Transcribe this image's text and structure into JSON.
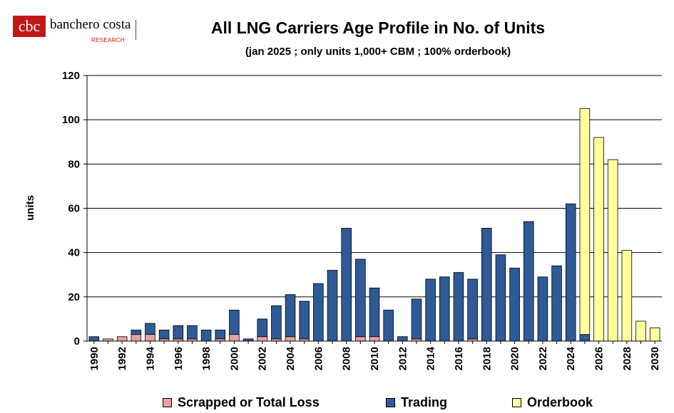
{
  "logo": {
    "name": "banchero costa",
    "sub": "RESEARCH"
  },
  "chart_data": {
    "type": "bar",
    "stacked": true,
    "title": "All LNG Carriers Age Profile in No. of Units",
    "subtitle": "(jan 2025 ; only units 1,000+ CBM ; 100% orderbook)",
    "xlabel": "",
    "ylabel": "units",
    "ylim": [
      0,
      120
    ],
    "yticks": [
      0,
      20,
      40,
      60,
      80,
      100,
      120
    ],
    "grid": true,
    "legend_position": "bottom",
    "categories": [
      "1990",
      "1991",
      "1992",
      "1993",
      "1994",
      "1995",
      "1996",
      "1997",
      "1998",
      "1999",
      "2000",
      "2001",
      "2002",
      "2003",
      "2004",
      "2005",
      "2006",
      "2007",
      "2008",
      "2009",
      "2010",
      "2011",
      "2012",
      "2013",
      "2014",
      "2015",
      "2016",
      "2017",
      "2018",
      "2019",
      "2020",
      "2021",
      "2022",
      "2023",
      "2024",
      "2025",
      "2026",
      "2027",
      "2028",
      "2029",
      "2030"
    ],
    "xtick_labels": [
      "1990",
      "1992",
      "1994",
      "1996",
      "1998",
      "2000",
      "2002",
      "2004",
      "2006",
      "2008",
      "2010",
      "2012",
      "2014",
      "2016",
      "2018",
      "2020",
      "2022",
      "2024",
      "2026",
      "2028",
      "2030"
    ],
    "series": [
      {
        "name": "Scrapped or Total Loss",
        "color": "#e8a0a0",
        "values": [
          0,
          1,
          2,
          3,
          3,
          1,
          1,
          1,
          0,
          1,
          3,
          0,
          2,
          1,
          2,
          1,
          0,
          0,
          0,
          2,
          2,
          0,
          0,
          1,
          0,
          0,
          0,
          1,
          0,
          0,
          0,
          0,
          0,
          0,
          0,
          0,
          0,
          0,
          0,
          0,
          0
        ]
      },
      {
        "name": "Trading",
        "color": "#2f5a96",
        "values": [
          2,
          0,
          0,
          2,
          5,
          4,
          6,
          6,
          5,
          4,
          11,
          1,
          8,
          15,
          19,
          17,
          26,
          32,
          51,
          35,
          22,
          14,
          2,
          18,
          28,
          29,
          31,
          27,
          51,
          39,
          33,
          54,
          29,
          34,
          62,
          3,
          0,
          0,
          0,
          0,
          0
        ]
      },
      {
        "name": "Orderbook",
        "color": "#ffff9e",
        "values": [
          0,
          0,
          0,
          0,
          0,
          0,
          0,
          0,
          0,
          0,
          0,
          0,
          0,
          0,
          0,
          0,
          0,
          0,
          0,
          0,
          0,
          0,
          0,
          0,
          0,
          0,
          0,
          0,
          0,
          0,
          0,
          0,
          0,
          0,
          0,
          102,
          92,
          82,
          41,
          9,
          6
        ]
      }
    ]
  }
}
